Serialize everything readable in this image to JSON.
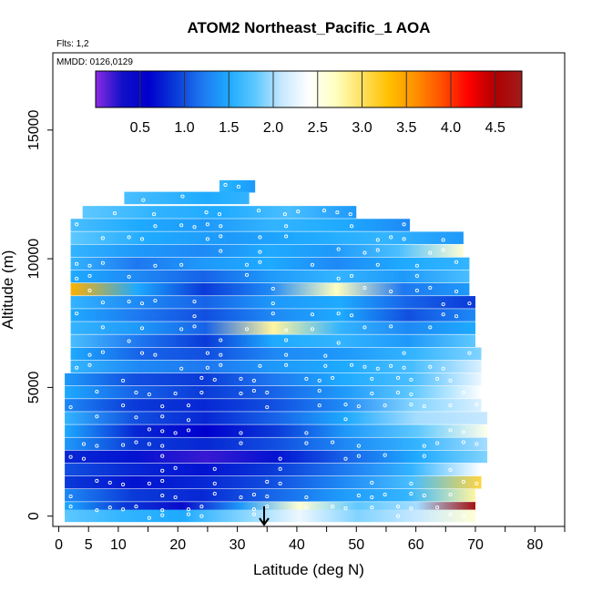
{
  "chart_data": {
    "type": "heatmap",
    "title": "ATOM2 Northeast_Pacific_1 AOA",
    "subtitle_flights": "Flts: 1,2",
    "subtitle_dates": "MMDD: 0126,0129",
    "xlabel": "Latitude (deg N)",
    "ylabel": "Altitude (m)",
    "xlim": [
      -1,
      85
    ],
    "ylim": [
      -400,
      18000
    ],
    "x_ticks": [
      0,
      5,
      10,
      20,
      30,
      40,
      50,
      60,
      70,
      80
    ],
    "x_minor_ticks": [
      15,
      25,
      35,
      45,
      55,
      65,
      75,
      85
    ],
    "y_ticks": [
      0,
      5000,
      10000,
      15000
    ],
    "colorbar": {
      "range": [
        0,
        4.8
      ],
      "labels": [
        "0.5",
        "1.0",
        "1.5",
        "2.0",
        "2.5",
        "3.0",
        "3.5",
        "4.0",
        "4.5"
      ],
      "label_values": [
        0.5,
        1.0,
        1.5,
        2.0,
        2.5,
        3.0,
        3.5,
        4.0,
        4.5
      ],
      "colors": [
        "#8a2be2",
        "#1010c8",
        "#0000cd",
        "#0a3ad8",
        "#1e78f0",
        "#1eaaff",
        "#5ec8ff",
        "#c8e8ff",
        "#ffffff",
        "#ffffc0",
        "#ffe060",
        "#ffc000",
        "#ff9000",
        "#ff5000",
        "#ff0000",
        "#b00000",
        "#a01c1c"
      ]
    },
    "arrow_marker_latitude": 34.5,
    "rows": [
      {
        "alt": 12800,
        "x0": 27,
        "x1": 33,
        "values": [
          1.6,
          1.5,
          1.4
        ]
      },
      {
        "alt": 12350,
        "x0": 11,
        "x1": 32,
        "values": [
          1.7,
          1.6,
          1.5,
          1.6
        ]
      },
      {
        "alt": 11800,
        "x0": 4,
        "x1": 50,
        "values": [
          1.8,
          1.6,
          1.5,
          1.7,
          1.4
        ]
      },
      {
        "alt": 11300,
        "x0": 2,
        "x1": 59,
        "values": [
          1.7,
          1.5,
          1.4,
          1.6,
          1.5,
          1.3
        ]
      },
      {
        "alt": 10800,
        "x0": 2,
        "x1": 68,
        "values": [
          1.8,
          1.5,
          1.4,
          1.5,
          1.6,
          1.4
        ]
      },
      {
        "alt": 10300,
        "x0": 2,
        "x1": 68,
        "values": [
          1.6,
          1.4,
          1.3,
          1.5,
          1.4,
          1.7,
          2.6
        ]
      },
      {
        "alt": 9800,
        "x0": 2,
        "x1": 69,
        "values": [
          1.6,
          1.2,
          1.4,
          1.5,
          1.3,
          1.5,
          1.6
        ]
      },
      {
        "alt": 9300,
        "x0": 2,
        "x1": 69,
        "values": [
          1.5,
          1.3,
          1.1,
          1.4,
          1.6,
          1.4,
          1.7
        ]
      },
      {
        "alt": 8800,
        "x0": 2,
        "x1": 69,
        "values": [
          3.4,
          1.5,
          0.9,
          1.3,
          2.7,
          1.2,
          1.4
        ]
      },
      {
        "alt": 8300,
        "x0": 2,
        "x1": 70,
        "values": [
          1.6,
          1.3,
          1.1,
          1.4,
          1.5,
          1.1,
          0.9
        ]
      },
      {
        "alt": 7800,
        "x0": 2,
        "x1": 70,
        "values": [
          1.5,
          1.2,
          1.0,
          1.3,
          1.5,
          1.0,
          1.3
        ]
      },
      {
        "alt": 7300,
        "x0": 2,
        "x1": 70,
        "values": [
          1.6,
          1.4,
          1.1,
          2.8,
          1.6,
          1.3,
          1.5
        ]
      },
      {
        "alt": 6800,
        "x0": 2,
        "x1": 70,
        "values": [
          1.7,
          1.2,
          0.9,
          1.5,
          1.6,
          1.4,
          1.8
        ]
      },
      {
        "alt": 6300,
        "x0": 2,
        "x1": 71,
        "values": [
          1.5,
          1.1,
          1.0,
          1.3,
          1.4,
          1.6,
          1.9
        ]
      },
      {
        "alt": 5800,
        "x0": 2,
        "x1": 71,
        "values": [
          1.6,
          1.3,
          1.2,
          1.4,
          1.5,
          1.7,
          2.2
        ]
      },
      {
        "alt": 5300,
        "x0": 1,
        "x1": 71,
        "values": [
          1.4,
          1.0,
          0.9,
          1.2,
          1.5,
          1.7,
          2.3
        ]
      },
      {
        "alt": 4800,
        "x0": 1,
        "x1": 71,
        "values": [
          1.5,
          1.1,
          0.9,
          1.1,
          1.4,
          1.8,
          2.4
        ]
      },
      {
        "alt": 4300,
        "x0": 1,
        "x1": 71,
        "values": [
          1.3,
          0.9,
          0.8,
          1.0,
          1.3,
          1.9,
          2.2
        ]
      },
      {
        "alt": 3800,
        "x0": 1,
        "x1": 72,
        "values": [
          1.6,
          1.0,
          0.8,
          1.1,
          1.5,
          2.0,
          2.1
        ]
      },
      {
        "alt": 3300,
        "x0": 1,
        "x1": 72,
        "values": [
          1.5,
          0.8,
          0.6,
          0.9,
          1.4,
          1.8,
          2.5
        ]
      },
      {
        "alt": 2800,
        "x0": 1,
        "x1": 72,
        "values": [
          1.4,
          0.9,
          0.8,
          1.0,
          1.3,
          1.6,
          2.0
        ]
      },
      {
        "alt": 2300,
        "x0": 1,
        "x1": 72,
        "values": [
          0.8,
          0.7,
          0.2,
          0.7,
          1.1,
          1.5,
          1.9
        ]
      },
      {
        "alt": 1800,
        "x0": 1,
        "x1": 71,
        "values": [
          1.0,
          0.8,
          0.7,
          0.9,
          1.2,
          1.6,
          2.4
        ]
      },
      {
        "alt": 1300,
        "x0": 1,
        "x1": 71,
        "values": [
          0.9,
          0.7,
          0.8,
          1.0,
          1.3,
          1.7,
          3.1
        ]
      },
      {
        "alt": 800,
        "x0": 1,
        "x1": 70,
        "values": [
          1.3,
          0.9,
          0.8,
          1.1,
          1.4,
          1.6,
          2.8
        ]
      },
      {
        "alt": 300,
        "x0": 1,
        "x1": 70,
        "values": [
          1.5,
          0.9,
          0.4,
          1.4,
          2.6,
          1.8,
          2.0,
          4.7
        ]
      },
      {
        "alt": 0,
        "x0": 1,
        "x1": 70,
        "values": [
          1.8,
          1.6,
          1.5,
          1.9,
          2.3,
          1.9,
          2.1,
          2.6
        ]
      }
    ]
  }
}
